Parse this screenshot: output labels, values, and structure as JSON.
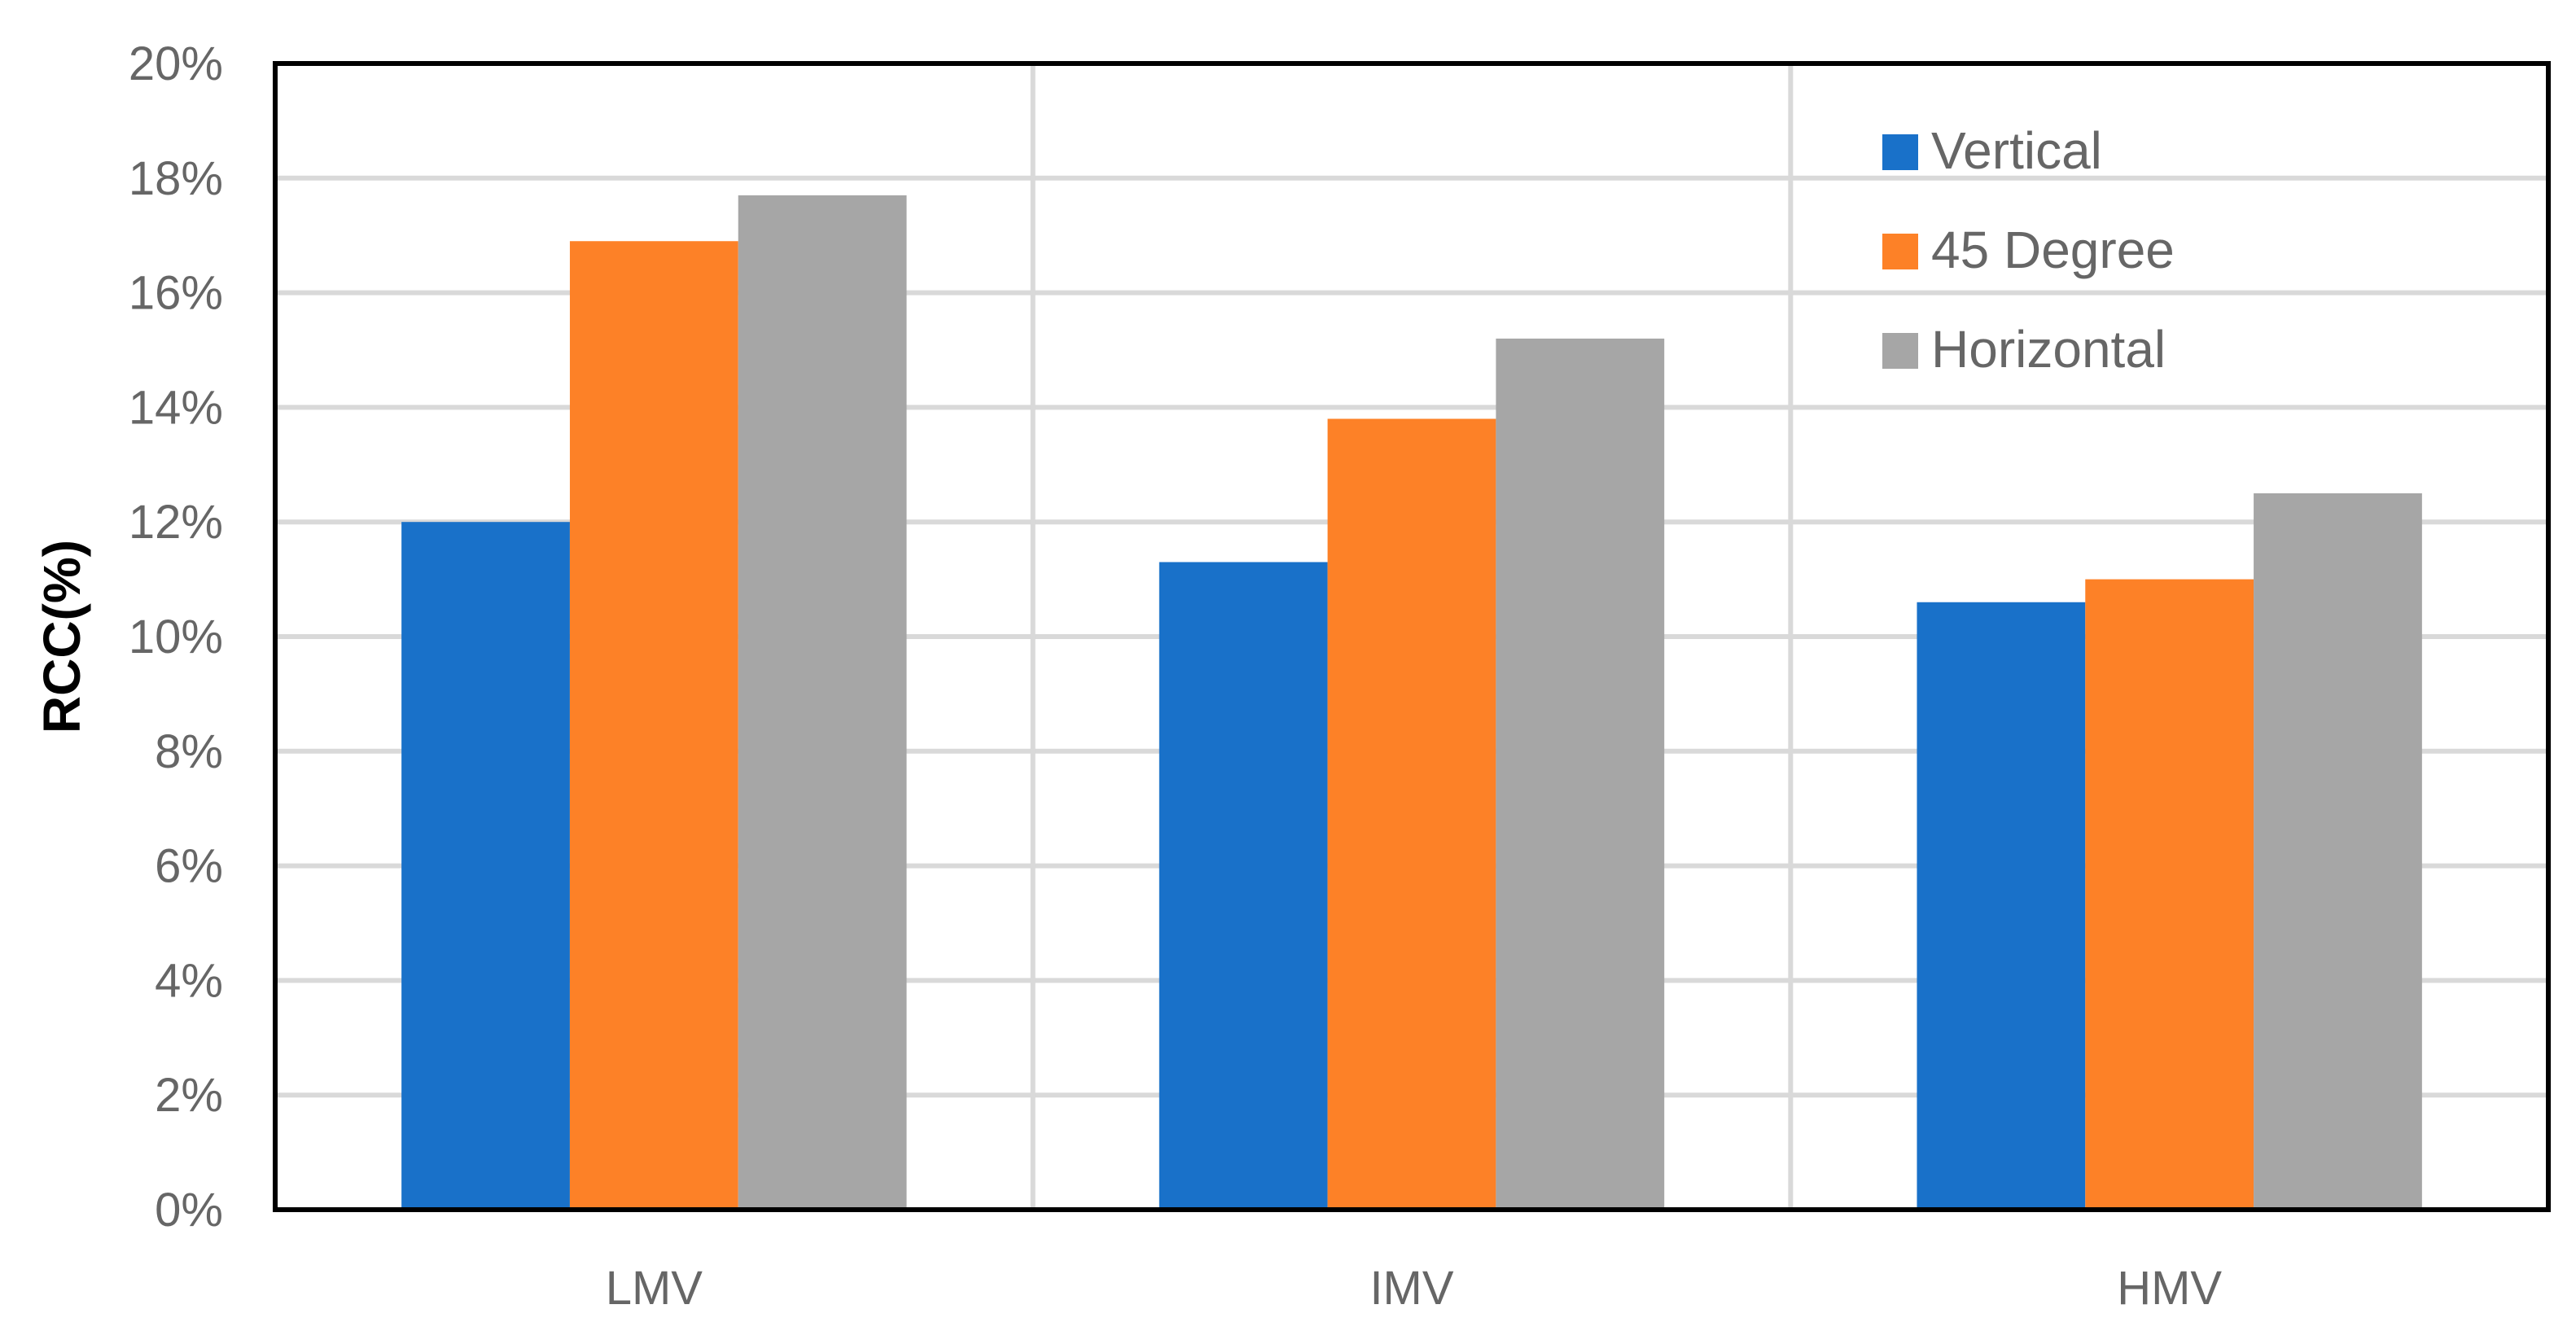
{
  "chart_data": {
    "type": "bar",
    "title": "",
    "xlabel": "",
    "ylabel": "RCC(%)",
    "ylim": [
      0,
      20
    ],
    "ytick_step": 2,
    "ytick_suffix": "%",
    "grid": true,
    "legend_position": "top-right",
    "categories": [
      "LMV",
      "IMV",
      "HMV"
    ],
    "series": [
      {
        "name": "Vertical",
        "color": "#1971C9",
        "values": [
          12.0,
          11.3,
          10.6
        ]
      },
      {
        "name": "45 Degree",
        "color": "#FD8127",
        "values": [
          16.9,
          13.8,
          11.0
        ]
      },
      {
        "name": "Horizontal",
        "color": "#A6A6A6",
        "values": [
          17.7,
          15.2,
          12.5
        ]
      }
    ],
    "colors": {
      "grid": "#D9D9D9",
      "frame": "#000000",
      "tick_text": "#666666"
    }
  }
}
